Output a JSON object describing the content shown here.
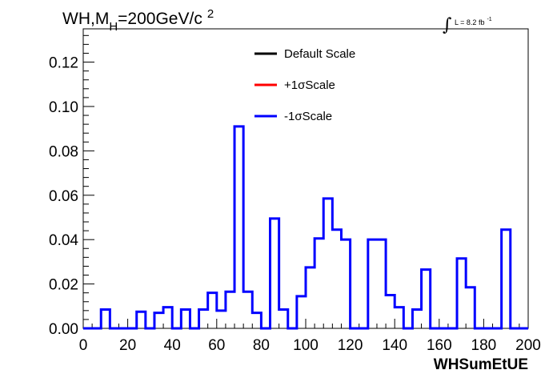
{
  "chart_data": {
    "type": "histogram-step",
    "title": {
      "prefix": "WH,M",
      "subscript": "H",
      "suffix": "=200GeV/c",
      "superscript": "2"
    },
    "lumi": {
      "text": "L = 8.2 fb",
      "superscript": "-1"
    },
    "xlabel": "WHSumEtUE",
    "xlim": [
      0,
      200
    ],
    "ylim": [
      0,
      0.135
    ],
    "x_ticks": [
      0,
      20,
      40,
      60,
      80,
      100,
      120,
      140,
      160,
      180,
      200
    ],
    "x_tick_labels": [
      "0",
      "20",
      "40",
      "60",
      "80",
      "100",
      "120",
      "140",
      "160",
      "180",
      "200"
    ],
    "y_ticks": [
      0,
      0.02,
      0.04,
      0.06,
      0.08,
      0.1,
      0.12
    ],
    "y_tick_labels": [
      "0.00",
      "0.02",
      "0.04",
      "0.06",
      "0.08",
      "0.10",
      "0.12"
    ],
    "bin_edges": [
      0,
      4,
      8,
      12,
      16,
      20,
      24,
      28,
      32,
      36,
      40,
      44,
      48,
      52,
      56,
      60,
      64,
      68,
      72,
      76,
      80,
      84,
      88,
      92,
      96,
      100,
      104,
      108,
      112,
      116,
      120,
      124,
      128,
      132,
      136,
      140,
      144,
      148,
      152,
      156,
      160,
      164,
      168,
      172,
      176,
      180,
      184,
      188,
      192,
      196,
      200
    ],
    "legend": {
      "position": "top-center",
      "entries": [
        {
          "label": "Default Scale",
          "color": "#000000"
        },
        {
          "label": "+1σScale",
          "color": "#ff0000"
        },
        {
          "label": "-1σScale",
          "color": "#0000ff"
        }
      ]
    },
    "series": [
      {
        "name": "-1σScale",
        "color": "#0000ff",
        "values": [
          0,
          0,
          0.0085,
          0,
          0,
          0,
          0.0075,
          0,
          0.007,
          0.0095,
          0,
          0.0085,
          0,
          0.0085,
          0.016,
          0.008,
          0.0165,
          0.091,
          0.0165,
          0.007,
          0,
          0.0495,
          0.0085,
          0,
          0.0145,
          0.0275,
          0.0405,
          0.0585,
          0.0445,
          0.04,
          0,
          0,
          0.04,
          0.04,
          0.015,
          0.0095,
          0,
          0.0085,
          0.0265,
          0,
          0,
          0,
          0.0315,
          0.0185,
          0,
          0,
          0,
          0.0445,
          0,
          0
        ]
      }
    ]
  }
}
